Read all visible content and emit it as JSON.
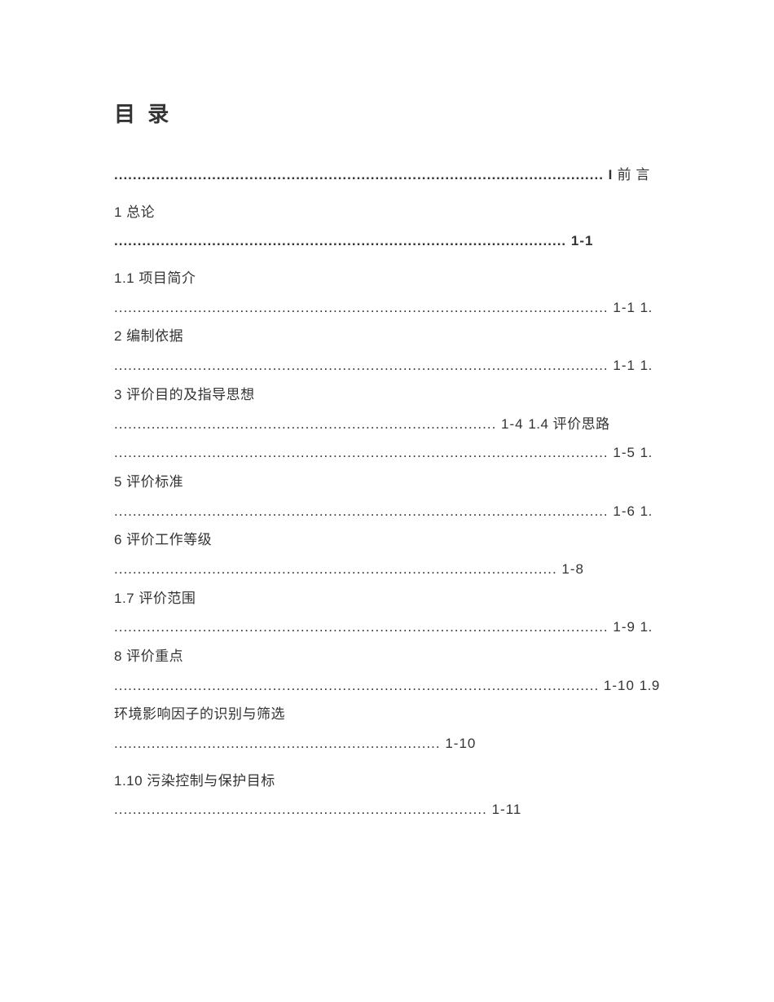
{
  "title": "目 录",
  "lines": {
    "preface_dots": "......................................................................................................... I",
    "preface_text": " 前 言",
    "section1_text": "1 总论",
    "section1_dots": "................................................................................................. 1-1",
    "s1_1_text": "1.1 项目简介",
    "s1_1_dots": ".......................................................................................................... 1-1 ",
    "s1_2_text": "1.2 编制依据",
    "s1_2_dots": ".......................................................................................................... 1-1 ",
    "s1_3_text": "1.3 评价目的及指导思想",
    "s1_3_dots": ".................................................................................. 1-4 ",
    "s1_4_text": "1.4 评价思路",
    "s1_4_dots": ".......................................................................................................... 1-5 ",
    "s1_5_text": "1.5 评价标准",
    "s1_5_dots": ".......................................................................................................... 1-6 ",
    "s1_6_text": "1.6 评价工作等级",
    "s1_6_dots": "............................................................................................... 1-8",
    "s1_7_text": "1.7 评价范围",
    "s1_7_dots": ".......................................................................................................... 1-9 ",
    "s1_8_text": "1.8 评价重点",
    "s1_8_dots": "........................................................................................................ 1-10 ",
    "s1_9_text": "1.9 环境影响因子的识别与筛选",
    "s1_9_dots": "...................................................................... 1-10",
    "s1_10_text": "1.10 污染控制与保护目标",
    "s1_10_dots": "................................................................................ 1-11"
  },
  "colors": {
    "text": "#333333",
    "background": "#ffffff"
  },
  "typography": {
    "title_fontsize": 26,
    "body_fontsize": 17,
    "line_height": 2.1
  }
}
